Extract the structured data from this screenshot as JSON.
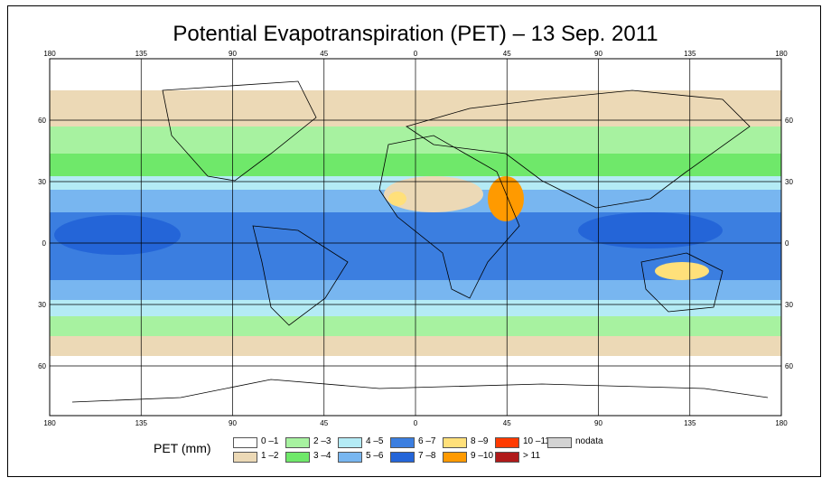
{
  "title": "Potential Evapotranspiration (PET) – 13 Sep. 2011",
  "map": {
    "top_lon_ticks": [
      "180",
      "135",
      "90",
      "45",
      "0",
      "45",
      "90",
      "135",
      "180"
    ],
    "bottom_lon_ticks": [
      "180",
      "135",
      "90",
      "45",
      "0",
      "45",
      "90",
      "135",
      "180"
    ],
    "left_lat_ticks": [
      "60",
      "30",
      "0",
      "30",
      "60"
    ],
    "right_lat_ticks": [
      "60",
      "30",
      "0",
      "30",
      "60"
    ]
  },
  "legend": {
    "label": "PET (mm)",
    "classes": [
      {
        "label": "0 –1",
        "color": "#ffffff"
      },
      {
        "label": "1 –2",
        "color": "#ecd9b6"
      },
      {
        "label": "2 –3",
        "color": "#a7f2a0"
      },
      {
        "label": "3 –4",
        "color": "#6fe86a"
      },
      {
        "label": "4 –5",
        "color": "#b4ebf5"
      },
      {
        "label": "5 –6",
        "color": "#78b6f0"
      },
      {
        "label": "6 –7",
        "color": "#3b7ee0"
      },
      {
        "label": "7 –8",
        "color": "#2465d8"
      },
      {
        "label": "8 –9",
        "color": "#ffe07a"
      },
      {
        "label": "9 –10",
        "color": "#ff9a00"
      },
      {
        "label": "10 –11",
        "color": "#ff3a00"
      },
      {
        "label": "> 11",
        "color": "#b01a1a"
      },
      {
        "label": "nodata",
        "color": "#d3d3d3"
      }
    ]
  }
}
